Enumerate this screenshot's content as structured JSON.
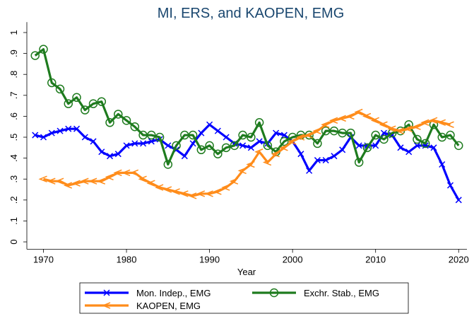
{
  "chart_data": {
    "type": "line",
    "title": "MI, ERS, and KAOPEN, EMG",
    "x_label": "Year",
    "x": [
      1969,
      1970,
      1971,
      1972,
      1973,
      1974,
      1975,
      1976,
      1977,
      1978,
      1979,
      1980,
      1981,
      1982,
      1983,
      1984,
      1985,
      1986,
      1987,
      1988,
      1989,
      1990,
      1991,
      1992,
      1993,
      1994,
      1995,
      1996,
      1997,
      1998,
      1999,
      2000,
      2001,
      2002,
      2003,
      2004,
      2005,
      2006,
      2007,
      2008,
      2009,
      2010,
      2011,
      2012,
      2013,
      2014,
      2015,
      2016,
      2017,
      2018,
      2019,
      2020
    ],
    "series": [
      {
        "name": "Mon. Indep., EMG",
        "color": "#0000ff",
        "marker": "x",
        "values": [
          0.51,
          0.5,
          0.52,
          0.53,
          0.54,
          0.54,
          0.5,
          0.48,
          0.43,
          0.41,
          0.42,
          0.46,
          0.47,
          0.47,
          0.48,
          0.49,
          0.46,
          0.44,
          0.41,
          0.47,
          0.52,
          0.56,
          0.53,
          0.5,
          0.47,
          0.46,
          0.45,
          0.48,
          0.47,
          0.52,
          0.51,
          0.48,
          0.42,
          0.34,
          0.39,
          0.39,
          0.41,
          0.44,
          0.5,
          0.46,
          0.46,
          0.46,
          0.52,
          0.51,
          0.45,
          0.43,
          0.46,
          0.46,
          0.45,
          0.37,
          0.27,
          0.2
        ]
      },
      {
        "name": "Exchr. Stab., EMG",
        "color": "#1e7b1e",
        "marker": "circle",
        "values": [
          0.89,
          0.92,
          0.76,
          0.73,
          0.66,
          0.69,
          0.63,
          0.66,
          0.67,
          0.57,
          0.61,
          0.58,
          0.55,
          0.51,
          0.51,
          0.5,
          0.37,
          0.46,
          0.51,
          0.51,
          0.44,
          0.46,
          0.42,
          0.45,
          0.46,
          0.51,
          0.5,
          0.57,
          0.46,
          0.43,
          0.48,
          0.5,
          0.51,
          0.51,
          0.47,
          0.53,
          0.53,
          0.52,
          0.52,
          0.38,
          0.45,
          0.51,
          0.49,
          0.52,
          0.53,
          0.56,
          0.49,
          0.47,
          0.56,
          0.5,
          0.51,
          0.46
        ]
      },
      {
        "name": "KAOPEN, EMG",
        "color": "#ff8c1a",
        "marker": "chevron",
        "values": [
          null,
          0.3,
          0.29,
          0.29,
          0.27,
          0.28,
          0.29,
          0.29,
          0.29,
          0.31,
          0.33,
          0.33,
          0.33,
          0.3,
          0.28,
          0.26,
          0.25,
          0.24,
          0.23,
          0.22,
          0.23,
          0.23,
          0.24,
          0.26,
          0.29,
          0.34,
          0.37,
          0.43,
          0.38,
          0.42,
          0.45,
          0.48,
          0.5,
          0.51,
          0.53,
          0.56,
          0.58,
          0.59,
          0.6,
          0.62,
          0.6,
          0.58,
          0.56,
          0.54,
          0.53,
          0.54,
          0.55,
          0.57,
          0.58,
          0.57,
          0.56,
          null
        ]
      }
    ],
    "xlim": [
      1968,
      2021
    ],
    "xticks": [
      1970,
      1980,
      1990,
      2000,
      2010,
      2020
    ],
    "ylim": [
      -0.035,
      1.05
    ],
    "yticks": [
      0,
      {
        "value": 0.1,
        "label": ".1"
      },
      {
        "value": 0.2,
        "label": ".2"
      },
      {
        "value": 0.3,
        "label": ".3"
      },
      {
        "value": 0.4,
        "label": ".4"
      },
      {
        "value": 0.5,
        "label": ".5"
      },
      {
        "value": 0.6,
        "label": ".6"
      },
      {
        "value": 0.7,
        "label": ".7"
      },
      {
        "value": 0.8,
        "label": ".8"
      },
      {
        "value": 0.9,
        "label": ".9"
      },
      1
    ],
    "grid": false,
    "legend": "bottom"
  }
}
